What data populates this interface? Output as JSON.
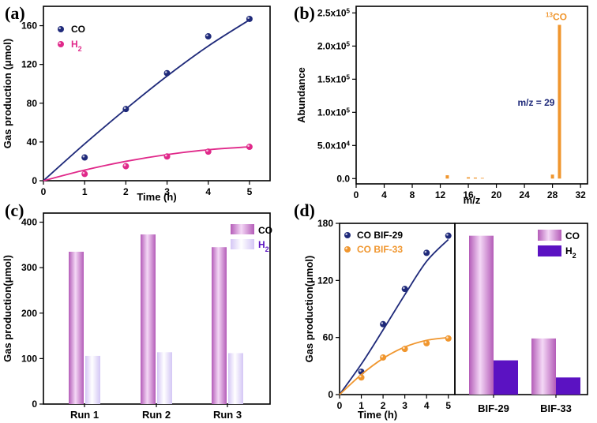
{
  "colors": {
    "co": "#1f2a7a",
    "h2": "#e0298a",
    "orange": "#f0962e",
    "co_bar": "#b45cb8",
    "h2_bar": "#d4c6f5",
    "co_bar_d": "#c06bc9",
    "h2_bar_d": "#5b12c2"
  },
  "chart_data": [
    {
      "panel": "(a)",
      "type": "scatter",
      "xlabel": "Time (h)",
      "ylabel": "Gas production (μmol)",
      "xlim": [
        0,
        5.5
      ],
      "ylim": [
        0,
        180
      ],
      "xticks": [
        0,
        1,
        2,
        3,
        4,
        5
      ],
      "yticks": [
        0,
        40,
        80,
        120,
        160
      ],
      "series": [
        {
          "name": "CO",
          "x": [
            1,
            2,
            3,
            4,
            5
          ],
          "y": [
            24,
            74,
            111,
            149,
            167
          ],
          "fit": [
            [
              0,
              0
            ],
            [
              1,
              38
            ],
            [
              2,
              74
            ],
            [
              3,
              108
            ],
            [
              4,
              139
            ],
            [
              5,
              166
            ]
          ]
        },
        {
          "name": "H2",
          "x": [
            1,
            2,
            3,
            4,
            5
          ],
          "y": [
            7,
            15,
            25,
            30,
            35
          ],
          "fit": [
            [
              0,
              0
            ],
            [
              1,
              11
            ],
            [
              2,
              20
            ],
            [
              3,
              27
            ],
            [
              4,
              32
            ],
            [
              5,
              35
            ]
          ]
        }
      ],
      "legend": "top-left"
    },
    {
      "panel": "(b)",
      "type": "bar",
      "xlabel": "m/z",
      "ylabel": "Abundance",
      "xlim": [
        0,
        33
      ],
      "ylim": [
        -8000,
        260000
      ],
      "xticks": [
        0,
        4,
        8,
        12,
        16,
        20,
        24,
        28,
        32
      ],
      "yticks": [
        0,
        50000,
        100000,
        150000,
        200000,
        250000
      ],
      "ytick_labels": [
        {
          "m": "0.0",
          "e": ""
        },
        {
          "m": "5.0x10",
          "e": "4"
        },
        {
          "m": "1.0x10",
          "e": "5"
        },
        {
          "m": "1.5x10",
          "e": "5"
        },
        {
          "m": "2.0x10",
          "e": "5"
        },
        {
          "m": "2.5x10",
          "e": "5"
        }
      ],
      "x": [
        13,
        16,
        17,
        18,
        28,
        29
      ],
      "values": [
        5000,
        2000,
        1500,
        1000,
        6000,
        232000
      ],
      "peak_annotation": {
        "sup": "13",
        "text": "CO"
      },
      "note": "m/z = 29"
    },
    {
      "panel": "(c)",
      "type": "bar",
      "xlabel": "",
      "ylabel": "Gas production(μmol)",
      "ylim": [
        0,
        420
      ],
      "yticks": [
        0,
        100,
        200,
        300,
        400
      ],
      "categories": [
        "Run 1",
        "Run 2",
        "Run 3"
      ],
      "series": [
        {
          "name": "CO",
          "values": [
            335,
            373,
            345
          ]
        },
        {
          "name": "H2",
          "values": [
            106,
            114,
            112
          ]
        }
      ],
      "legend": "top-right"
    },
    {
      "panel": "(d)",
      "type": "scatter",
      "xlabel": "Time (h)",
      "ylabel": "Gas production(μmol)",
      "xlim": [
        0,
        5.3
      ],
      "ylim": [
        0,
        180
      ],
      "xticks": [
        0,
        1,
        2,
        3,
        4,
        5
      ],
      "yticks": [
        0,
        60,
        120,
        180
      ],
      "series": [
        {
          "name": "CO BIF-29",
          "x": [
            1,
            2,
            3,
            4,
            5
          ],
          "y": [
            24,
            74,
            111,
            149,
            167
          ],
          "fit": [
            [
              0,
              0
            ],
            [
              1,
              32
            ],
            [
              2,
              68
            ],
            [
              3,
              105
            ],
            [
              4,
              140
            ],
            [
              5,
              163
            ]
          ]
        },
        {
          "name": "CO BIF-33",
          "x": [
            1,
            2,
            3,
            4,
            5
          ],
          "y": [
            18,
            39,
            48,
            54,
            59
          ],
          "fit": [
            [
              0,
              0
            ],
            [
              1,
              21
            ],
            [
              2,
              38
            ],
            [
              3,
              50
            ],
            [
              4,
              57
            ],
            [
              5,
              60
            ]
          ]
        }
      ],
      "legend": "top-left"
    },
    {
      "panel": "(d)",
      "type": "bar",
      "ylim": [
        0,
        180
      ],
      "categories": [
        "BIF-29",
        "BIF-33"
      ],
      "series": [
        {
          "name": "CO",
          "values": [
            167,
            59
          ]
        },
        {
          "name": "H2",
          "values": [
            36,
            18
          ]
        }
      ],
      "legend": "top-right"
    }
  ],
  "labels": {
    "panel_a": "(a)",
    "panel_b": "(b)",
    "panel_c": "(c)",
    "panel_d": "(d)",
    "h2_main": "H",
    "h2_sub": "2",
    "co": "CO"
  }
}
